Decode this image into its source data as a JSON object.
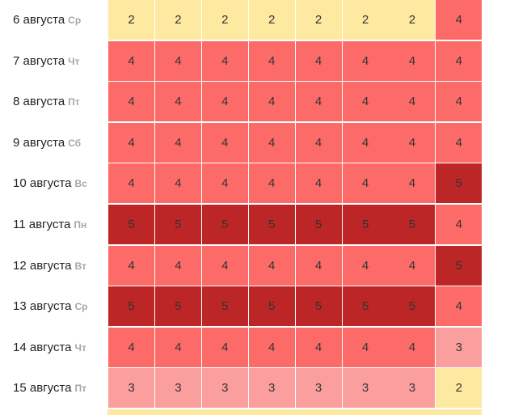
{
  "colors": {
    "level_2": "#fde9a0",
    "level_3": "#fa9f9e",
    "level_4": "#fd6b69",
    "level_5": "#bc2626"
  },
  "rows": [
    {
      "date": "6 августа",
      "dow": "Ср",
      "values": [
        2,
        2,
        2,
        2,
        2,
        2,
        2,
        4
      ]
    },
    {
      "date": "7 августа",
      "dow": "Чт",
      "values": [
        4,
        4,
        4,
        4,
        4,
        4,
        4,
        4
      ]
    },
    {
      "date": "8 августа",
      "dow": "Пт",
      "values": [
        4,
        4,
        4,
        4,
        4,
        4,
        4,
        4
      ]
    },
    {
      "date": "9 августа",
      "dow": "Сб",
      "values": [
        4,
        4,
        4,
        4,
        4,
        4,
        4,
        4
      ]
    },
    {
      "date": "10 августа",
      "dow": "Вс",
      "values": [
        4,
        4,
        4,
        4,
        4,
        4,
        4,
        5
      ]
    },
    {
      "date": "11 августа",
      "dow": "Пн",
      "values": [
        5,
        5,
        5,
        5,
        5,
        5,
        5,
        4
      ]
    },
    {
      "date": "12 августа",
      "dow": "Вт",
      "values": [
        4,
        4,
        4,
        4,
        4,
        4,
        4,
        5
      ]
    },
    {
      "date": "13 августа",
      "dow": "Ср",
      "values": [
        5,
        5,
        5,
        5,
        5,
        5,
        5,
        4
      ]
    },
    {
      "date": "14 августа",
      "dow": "Чт",
      "values": [
        4,
        4,
        4,
        4,
        4,
        4,
        4,
        3
      ]
    },
    {
      "date": "15 августа",
      "dow": "Пт",
      "values": [
        3,
        3,
        3,
        3,
        3,
        3,
        3,
        2
      ]
    }
  ]
}
